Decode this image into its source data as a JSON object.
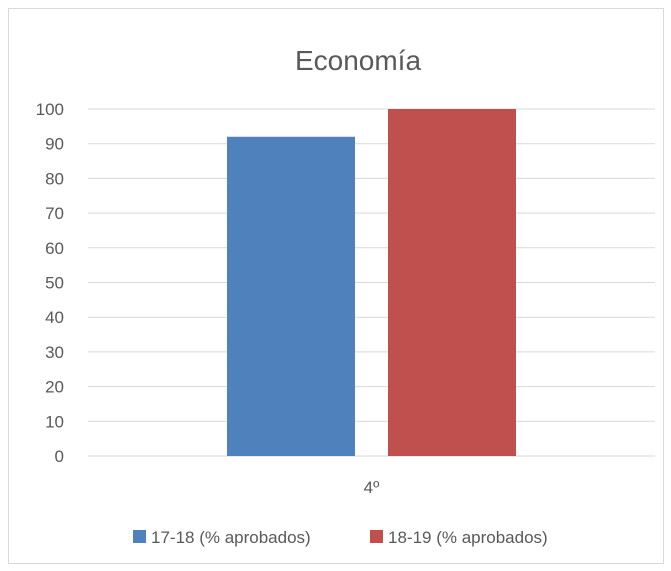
{
  "chart_data": {
    "type": "bar",
    "title": "Economía",
    "categories": [
      "4º"
    ],
    "series": [
      {
        "name": "17-18 (% aprobados)",
        "values": [
          92
        ],
        "color": "#4f81bd"
      },
      {
        "name": "18-19 (% aprobados)",
        "values": [
          100
        ],
        "color": "#c0504d"
      }
    ],
    "ylim": [
      0,
      100
    ],
    "yticks": [
      "0",
      "10",
      "20",
      "30",
      "40",
      "50",
      "60",
      "70",
      "80",
      "90",
      "100"
    ],
    "grid": true,
    "legend_position": "bottom"
  }
}
